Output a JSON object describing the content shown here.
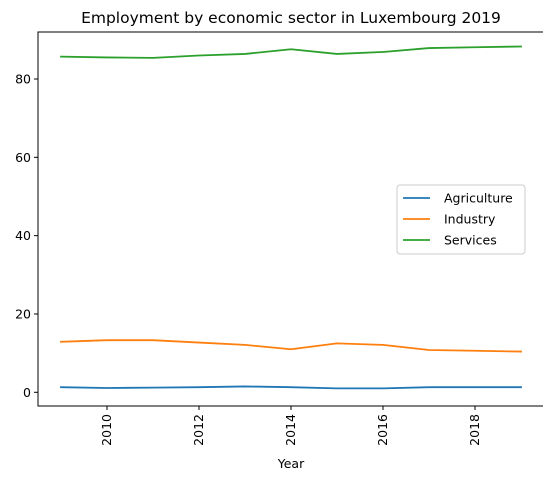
{
  "chart_data": {
    "type": "line",
    "title": "Employment by economic sector in Luxembourg 2019",
    "xlabel": "Year",
    "ylabel": "",
    "x": [
      2009,
      2010,
      2011,
      2012,
      2013,
      2014,
      2015,
      2016,
      2017,
      2018,
      2019
    ],
    "xlim": [
      2008.5,
      2019.5
    ],
    "ylim": [
      -3.5,
      92
    ],
    "xticks": [
      2010,
      2012,
      2014,
      2016,
      2018
    ],
    "yticks": [
      0,
      20,
      40,
      60,
      80
    ],
    "xtick_rotation": 90,
    "grid": false,
    "legend_position": "center-right",
    "series": [
      {
        "name": "Agriculture",
        "color": "#1f77b4",
        "values": [
          1.3,
          1.1,
          1.2,
          1.3,
          1.5,
          1.3,
          1.0,
          1.0,
          1.3,
          1.3,
          1.3
        ]
      },
      {
        "name": "Industry",
        "color": "#ff7f0e",
        "values": [
          12.9,
          13.3,
          13.3,
          12.7,
          12.1,
          11.0,
          12.5,
          12.1,
          10.8,
          10.6,
          10.4
        ]
      },
      {
        "name": "Services",
        "color": "#2ca02c",
        "values": [
          85.7,
          85.5,
          85.4,
          86.0,
          86.4,
          87.6,
          86.4,
          86.9,
          87.9,
          88.1,
          88.3
        ]
      }
    ]
  }
}
